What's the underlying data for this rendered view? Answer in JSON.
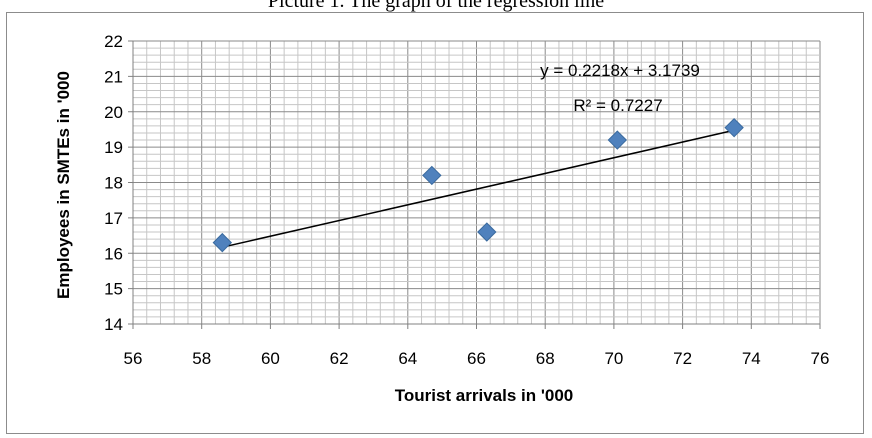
{
  "caption": "Picture 1. The graph of the regression line",
  "chart_data": {
    "type": "scatter",
    "xlabel": "Tourist arrivals in '000",
    "ylabel": "Employees in SMTEs in '000",
    "xlim": [
      56,
      76
    ],
    "ylim": [
      14,
      22
    ],
    "x_ticks": [
      "56",
      "58",
      "60",
      "62",
      "64",
      "66",
      "68",
      "70",
      "72",
      "74",
      "76"
    ],
    "y_ticks": [
      "14",
      "15",
      "16",
      "17",
      "18",
      "19",
      "20",
      "21",
      "22"
    ],
    "grid": true,
    "series": [
      {
        "points": [
          {
            "x": 58.6,
            "y": 16.3
          },
          {
            "x": 64.7,
            "y": 18.2
          },
          {
            "x": 66.3,
            "y": 16.6
          },
          {
            "x": 70.1,
            "y": 19.2
          },
          {
            "x": 73.5,
            "y": 19.55
          }
        ],
        "color": "#4f81bd",
        "marker": "diamond"
      }
    ],
    "trendline": {
      "slope": 0.2218,
      "intercept": 3.1739,
      "x_range": [
        58.6,
        73.5
      ],
      "equation": "y = 0.2218x + 3.1739",
      "r_squared": "R² = 0.7227",
      "color": "#000000"
    }
  }
}
